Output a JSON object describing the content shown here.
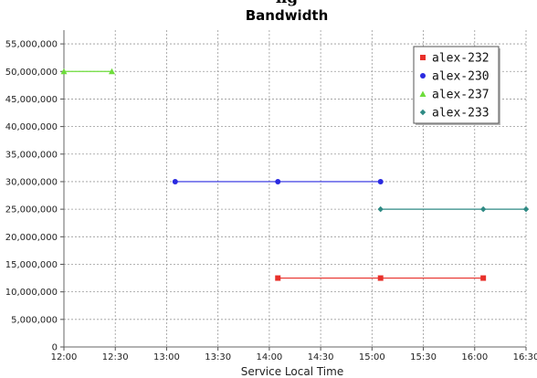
{
  "chart_data": {
    "type": "line",
    "title": "Bandwidth",
    "title_clipped": "ng",
    "xlabel": "Service Local Time",
    "ylabel": "",
    "x_ticks": [
      "12:00",
      "12:30",
      "13:00",
      "13:30",
      "14:00",
      "14:30",
      "15:00",
      "15:30",
      "16:00",
      "16:30"
    ],
    "xlim": [
      "12:00",
      "16:30"
    ],
    "ylim": [
      0,
      57500000
    ],
    "y_ticks": [
      0,
      5000000,
      10000000,
      15000000,
      20000000,
      25000000,
      30000000,
      35000000,
      40000000,
      45000000,
      50000000,
      55000000
    ],
    "y_tick_labels": [
      "0",
      "5,000,000",
      "10,000,000",
      "15,000,000",
      "20,000,000",
      "25,000,000",
      "30,000,000",
      "35,000,000",
      "40,000,000",
      "45,000,000",
      "50,000,000",
      "55,000,000"
    ],
    "grid": true,
    "legend_position": "top-right",
    "series": [
      {
        "name": "alex-232",
        "color": "#e8302a",
        "marker": "square",
        "points": [
          [
            "14:05",
            12500000
          ],
          [
            "15:05",
            12500000
          ],
          [
            "16:05",
            12500000
          ]
        ]
      },
      {
        "name": "alex-230",
        "color": "#2a2ae0",
        "marker": "circle",
        "points": [
          [
            "13:05",
            30000000
          ],
          [
            "14:05",
            30000000
          ],
          [
            "15:05",
            30000000
          ]
        ]
      },
      {
        "name": "alex-237",
        "color": "#6ddc3a",
        "marker": "triangle",
        "points": [
          [
            "12:00",
            50000000
          ],
          [
            "12:28",
            50000000
          ]
        ]
      },
      {
        "name": "alex-233",
        "color": "#2e8a84",
        "marker": "diamond",
        "points": [
          [
            "15:05",
            25000000
          ],
          [
            "16:05",
            25000000
          ],
          [
            "16:30",
            25000000
          ]
        ]
      }
    ]
  }
}
